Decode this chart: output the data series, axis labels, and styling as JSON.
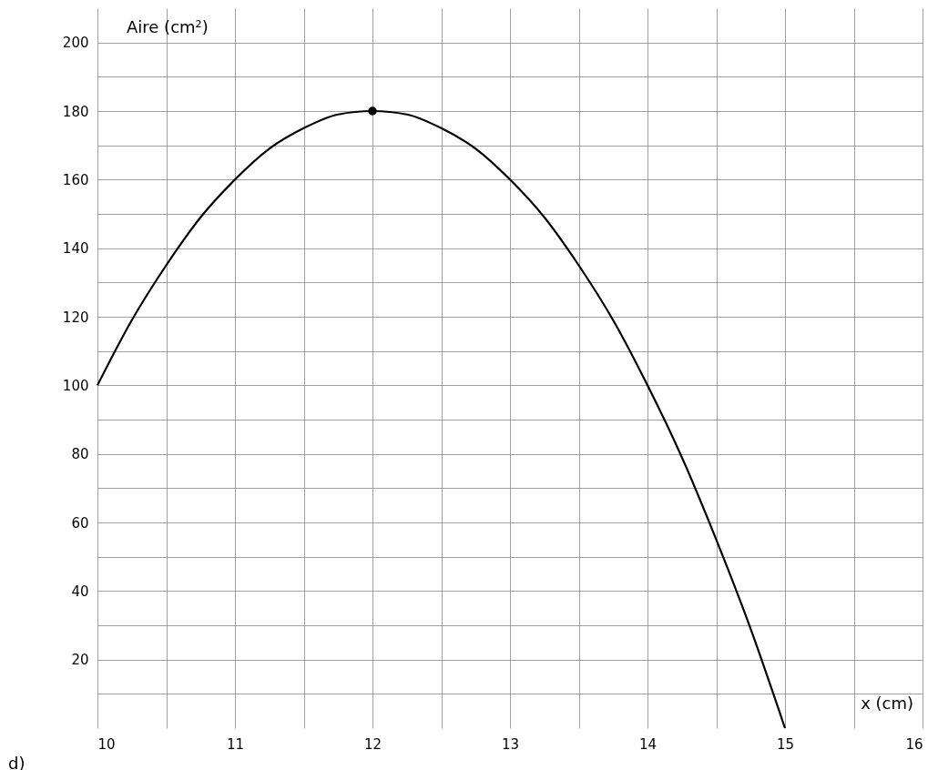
{
  "chart_data": {
    "type": "line",
    "xlabel": "x (cm)",
    "ylabel": "Aire (cm²)",
    "series": [
      {
        "type": "line",
        "color": "#000000",
        "x": [
          10,
          10.25,
          10.5,
          10.75,
          11,
          11.25,
          11.5,
          11.75,
          12,
          12.25,
          12.5,
          12.75,
          13,
          13.25,
          13.5,
          13.75,
          14,
          14.25,
          14.5,
          14.75,
          15
        ],
        "values": [
          100,
          119,
          135,
          149,
          160,
          169,
          175,
          179,
          180,
          179,
          175,
          169,
          160,
          149,
          135,
          119,
          100,
          79,
          55,
          29,
          0
        ]
      },
      {
        "type": "scatter",
        "marker": "circle",
        "color": "#000000",
        "x": [
          12
        ],
        "values": [
          180
        ]
      }
    ],
    "xlim": [
      10,
      16
    ],
    "ylim": [
      0,
      210
    ],
    "xticks": [
      10,
      {
        "value": 10.5,
        "label": null
      },
      11,
      {
        "value": 11.5,
        "label": null
      },
      12,
      {
        "value": 12.5,
        "label": null
      },
      13,
      {
        "value": 13.5,
        "label": null
      },
      14,
      {
        "value": 14.5,
        "label": null
      },
      15,
      {
        "value": 15.5,
        "label": null
      },
      16
    ],
    "yticks": [
      {
        "value": 10,
        "label": null
      },
      20,
      {
        "value": 30,
        "label": null
      },
      40,
      {
        "value": 50,
        "label": null
      },
      60,
      {
        "value": 70,
        "label": null
      },
      80,
      {
        "value": 90,
        "label": null
      },
      100,
      {
        "value": 110,
        "label": null
      },
      120,
      {
        "value": 130,
        "label": null
      },
      140,
      {
        "value": 150,
        "label": null
      },
      160,
      {
        "value": 170,
        "label": null
      },
      180,
      {
        "value": 190,
        "label": null
      },
      200
    ],
    "grid": true,
    "annotations": [
      "d)"
    ]
  }
}
